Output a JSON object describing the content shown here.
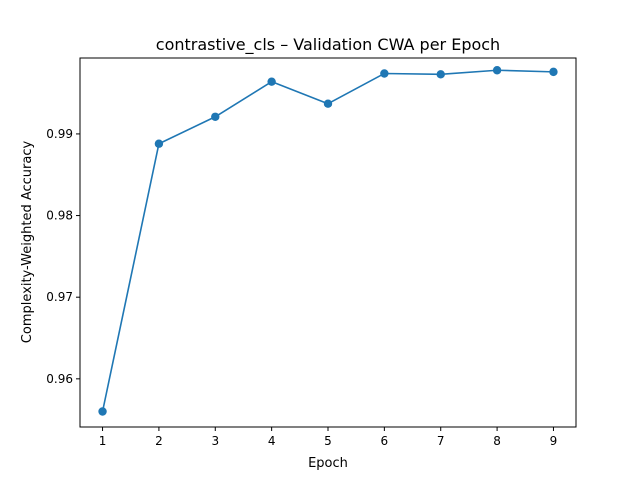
{
  "chart_data": {
    "type": "line",
    "title": "contrastive_cls – Validation CWA per Epoch",
    "xlabel": "Epoch",
    "ylabel": "Complexity-Weighted Accuracy",
    "x": [
      1,
      2,
      3,
      4,
      5,
      6,
      7,
      8,
      9
    ],
    "series": [
      {
        "values": [
          0.956,
          0.9888,
          0.9921,
          0.9964,
          0.9937,
          0.9974,
          0.9973,
          0.9978,
          0.9976
        ],
        "color": "#1f77b4"
      }
    ],
    "xlim": [
      0.6,
      9.4
    ],
    "ylim": [
      0.9541,
      0.9993
    ],
    "xticks": [
      1,
      2,
      3,
      4,
      5,
      6,
      7,
      8,
      9
    ],
    "yticks": [
      0.96,
      0.97,
      0.98,
      0.99
    ],
    "ytick_labels": [
      "0.96",
      "0.97",
      "0.98",
      "0.99"
    ],
    "grid": false,
    "markers": true
  }
}
